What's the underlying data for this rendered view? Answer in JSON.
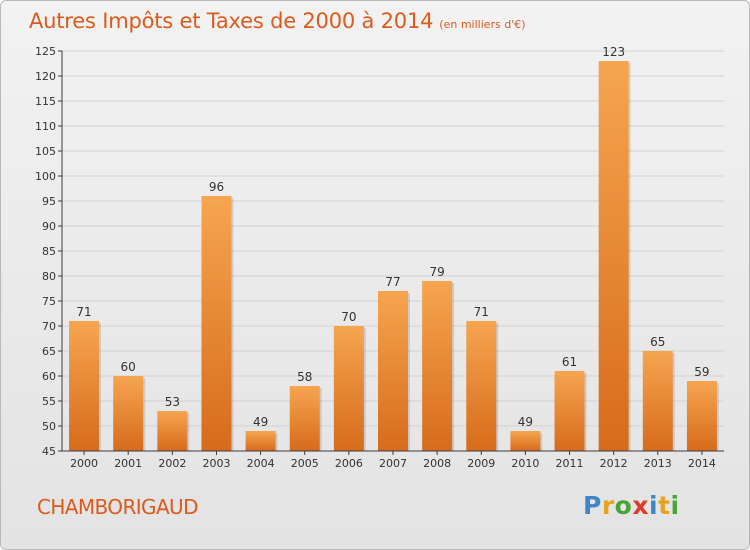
{
  "header": {
    "title": "Autres Impôts et Taxes de 2000 à 2014",
    "unit": "(en milliers d'€)"
  },
  "footer": {
    "commune": "CHAMBORIGAUD",
    "logo": [
      "P",
      "r",
      "o",
      "x",
      "i",
      "t",
      "i"
    ],
    "logo_colors": [
      "#3d86c8",
      "#e8a21e",
      "#4aa337",
      "#e23a2a",
      "#3d86c8",
      "#e8a21e",
      "#4aa337"
    ]
  },
  "colors": {
    "accent": "#dd5a1c",
    "bar_top": "#f6a550",
    "bar_bottom": "#d66b1c",
    "grid": "#d2d2d2",
    "axis": "#3c3c3c"
  },
  "chart_data": {
    "type": "bar",
    "title": "Autres Impôts et Taxes de 2000 à 2014",
    "ylabel": "",
    "xlabel": "",
    "categories": [
      "2000",
      "2001",
      "2002",
      "2003",
      "2004",
      "2005",
      "2006",
      "2007",
      "2008",
      "2009",
      "2010",
      "2011",
      "2012",
      "2013",
      "2014"
    ],
    "values": [
      71,
      60,
      53,
      96,
      49,
      58,
      70,
      77,
      79,
      71,
      49,
      61,
      123,
      65,
      59
    ],
    "ylim": [
      45,
      125
    ],
    "yticks": [
      45,
      50,
      55,
      60,
      65,
      70,
      75,
      80,
      85,
      90,
      95,
      100,
      105,
      110,
      115,
      120,
      125
    ],
    "grid": true,
    "legend": "none"
  }
}
